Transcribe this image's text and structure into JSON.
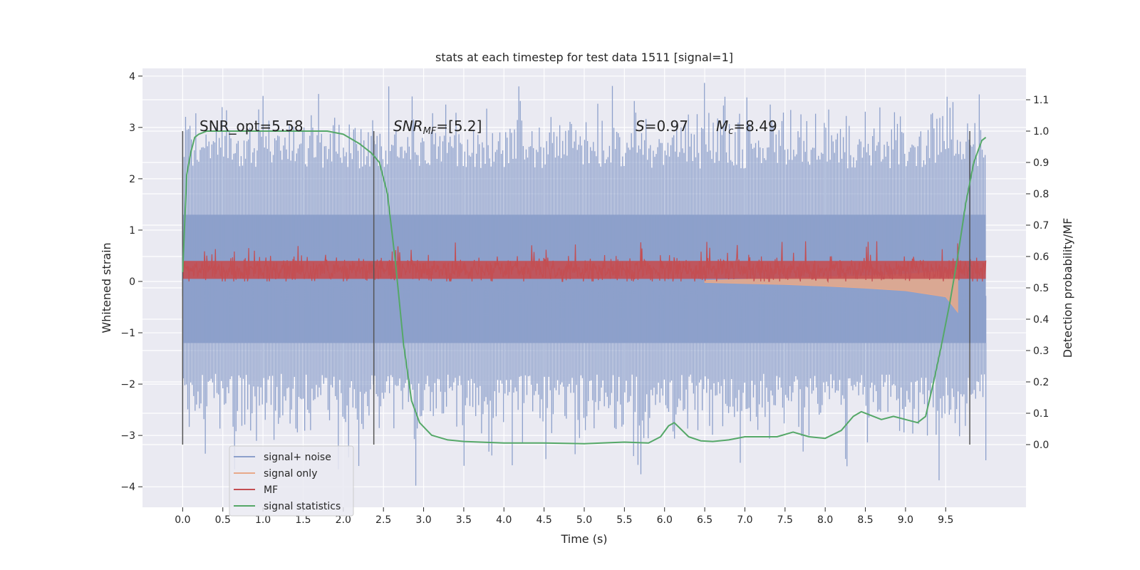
{
  "chart_data": {
    "type": "line",
    "title": "stats at each timestep for test data 1511 [signal=1]",
    "xlabel": "Time (s)",
    "ylabel": "Whitened strain",
    "ylabel_right": "Detection probability/MF",
    "xlim": [
      -0.5,
      10.5
    ],
    "ylim": [
      -4.4,
      4.15
    ],
    "ylim_right": [
      -0.2,
      1.2
    ],
    "xticks": [
      "0.0",
      "0.5",
      "1.0",
      "1.5",
      "2.0",
      "2.5",
      "3.0",
      "3.5",
      "4.0",
      "4.5",
      "5.0",
      "5.5",
      "6.0",
      "6.5",
      "7.0",
      "7.5",
      "8.0",
      "8.5",
      "9.0",
      "9.5"
    ],
    "yticks": [
      "−4",
      "−3",
      "−2",
      "−1",
      "0",
      "1",
      "2",
      "3",
      "4"
    ],
    "yticks_right": [
      "0.0",
      "0.1",
      "0.2",
      "0.3",
      "0.4",
      "0.5",
      "0.6",
      "0.7",
      "0.8",
      "0.9",
      "1.0",
      "1.1"
    ],
    "grid": true,
    "legend_position": "lower-left",
    "annotations": {
      "snr_opt": "SNR_opt=5.58",
      "snr_mf": "=[5.2]",
      "snr_mf_symbol": "SNR",
      "snr_mf_sub": "MF",
      "s_value": "=0.97",
      "s_symbol": "S",
      "mc_value": "=8.49",
      "mc_symbol": "M",
      "mc_sub": "c"
    },
    "vertical_markers": [
      0.0,
      2.38,
      9.8
    ],
    "series": [
      {
        "name": "signal+ noise",
        "color": "#8da0cb",
        "x": [
          0.0,
          10.0
        ],
        "envelope_typical": [
          -1.8,
          2.2
        ],
        "extremes": [
          -4.0,
          3.8
        ]
      },
      {
        "name": "signal only",
        "color": "#e8a98a",
        "x": [
          6.5,
          7.0,
          7.5,
          8.0,
          8.5,
          9.0,
          9.5,
          9.65
        ],
        "min": [
          -0.02,
          -0.04,
          -0.06,
          -0.09,
          -0.13,
          -0.18,
          -0.3,
          -0.6
        ],
        "max": [
          0.02,
          0.04,
          0.06,
          0.09,
          0.11,
          0.14,
          0.2,
          0.3
        ]
      },
      {
        "name": "MF",
        "color": "#c44e52",
        "x": [
          0.0,
          10.0
        ],
        "band_typical": [
          0.0,
          0.5
        ],
        "peak": 1.0
      },
      {
        "name": "signal statistics",
        "color": "#55a868",
        "axis": "right",
        "x": [
          0.0,
          0.05,
          0.1,
          0.15,
          0.2,
          0.3,
          0.5,
          1.0,
          1.5,
          1.8,
          2.0,
          2.2,
          2.35,
          2.45,
          2.55,
          2.65,
          2.75,
          2.85,
          2.95,
          3.1,
          3.3,
          3.5,
          4.0,
          4.5,
          5.0,
          5.3,
          5.5,
          5.8,
          5.95,
          6.05,
          6.12,
          6.2,
          6.3,
          6.45,
          6.6,
          6.8,
          7.0,
          7.2,
          7.4,
          7.6,
          7.8,
          8.0,
          8.2,
          8.35,
          8.45,
          8.55,
          8.7,
          8.85,
          9.0,
          9.15,
          9.25,
          9.35,
          9.45,
          9.55,
          9.65,
          9.75,
          9.85,
          9.95,
          10.0
        ],
        "y": [
          0.55,
          0.86,
          0.93,
          0.98,
          0.99,
          1.0,
          1.0,
          1.0,
          1.0,
          1.0,
          0.99,
          0.96,
          0.93,
          0.9,
          0.8,
          0.58,
          0.32,
          0.14,
          0.07,
          0.03,
          0.015,
          0.01,
          0.005,
          0.005,
          0.003,
          0.006,
          0.008,
          0.005,
          0.025,
          0.06,
          0.07,
          0.05,
          0.025,
          0.012,
          0.01,
          0.015,
          0.025,
          0.025,
          0.025,
          0.04,
          0.025,
          0.02,
          0.045,
          0.09,
          0.105,
          0.095,
          0.08,
          0.09,
          0.08,
          0.07,
          0.09,
          0.2,
          0.32,
          0.45,
          0.6,
          0.77,
          0.9,
          0.97,
          0.98
        ]
      }
    ]
  }
}
